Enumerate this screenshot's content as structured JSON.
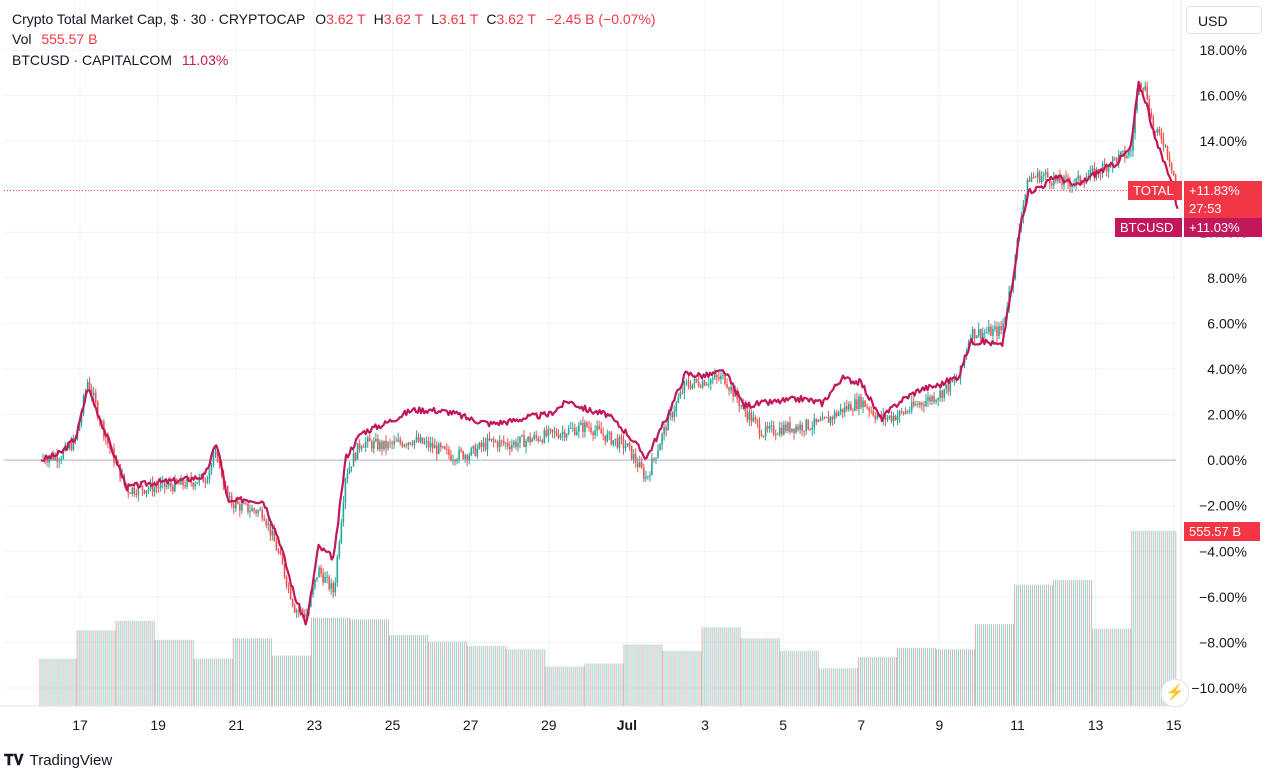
{
  "header": {
    "title": "Crypto Total Market Cap, $ · 30 · CRYPTOCAP",
    "ohlc": [
      {
        "label": "O",
        "value": "3.62 T"
      },
      {
        "label": "H",
        "value": "3.62 T"
      },
      {
        "label": "L",
        "value": "3.61 T"
      },
      {
        "label": "C",
        "value": "3.62 T"
      }
    ],
    "change": "−2.45 B (−0.07%)",
    "vol_label": "Vol",
    "vol_value": "555.57 B",
    "compare_label": "BTCUSD · CAPITALCOM",
    "compare_value": "11.03%"
  },
  "currency_button": "USD",
  "brand": "TradingView",
  "colors": {
    "total_up": "#26a69a",
    "total_down": "#ef5350",
    "btc_line": "#c2185b",
    "total_tag": "#f23645",
    "btc_tag": "#c2185b",
    "grid": "#f0f3fa",
    "zero_line": "#b2b5be",
    "text": "#131722",
    "red_text": "#f23645"
  },
  "tags": {
    "total_name": "TOTAL",
    "total_value": "+11.83%",
    "countdown": "27:53",
    "btc_name": "BTCUSD",
    "btc_value": "+11.03%",
    "volume_value": "555.57 B"
  },
  "chart_data": {
    "type": "line",
    "y_unit": "percent change",
    "ylim": [
      -10,
      18
    ],
    "y_ticks": [
      "18.00%",
      "16.00%",
      "14.00%",
      "12.00%",
      "10.00%",
      "8.00%",
      "6.00%",
      "4.00%",
      "2.00%",
      "0.00%",
      "−2.00%",
      "−4.00%",
      "−6.00%",
      "−8.00%",
      "−10.00%"
    ],
    "y_tick_values": [
      18,
      16,
      14,
      12,
      10,
      8,
      6,
      4,
      2,
      0,
      -2,
      -4,
      -6,
      -8,
      -10
    ],
    "x_ticks": [
      "17",
      "19",
      "21",
      "23",
      "25",
      "27",
      "29",
      "Jul",
      "3",
      "5",
      "7",
      "9",
      "11",
      "13",
      "15"
    ],
    "x_tick_days": [
      17,
      19,
      21,
      23,
      25,
      27,
      29,
      31,
      33,
      35,
      37,
      39,
      41,
      43,
      45
    ],
    "x_day_range": [
      15.95,
      45.2
    ],
    "grid": true,
    "last_value_line": 11.83,
    "series": [
      {
        "name": "TOTAL",
        "style": "candles",
        "x_days": [
          16.0,
          16.5,
          16.9,
          17.2,
          17.7,
          18.2,
          18.8,
          19.5,
          20.2,
          20.5,
          20.8,
          21.2,
          21.7,
          22.1,
          22.5,
          22.8,
          23.1,
          23.5,
          23.8,
          24.2,
          24.8,
          25.5,
          26.0,
          26.5,
          27.0,
          27.5,
          28.0,
          28.5,
          29.0,
          29.5,
          30.0,
          30.5,
          31.0,
          31.5,
          32.0,
          32.5,
          33.0,
          33.5,
          34.0,
          34.5,
          35.0,
          35.5,
          36.0,
          36.5,
          37.0,
          37.5,
          38.0,
          38.5,
          39.0,
          39.5,
          39.8,
          40.2,
          40.6,
          40.9,
          41.1,
          41.3,
          41.7,
          42.0,
          42.5,
          43.0,
          43.5,
          43.9,
          44.1,
          44.3,
          44.5,
          44.7,
          44.9,
          45.1
        ],
        "values": [
          0.1,
          0.2,
          0.9,
          3.5,
          0.8,
          -1.3,
          -1.2,
          -1.1,
          -0.8,
          0.3,
          -1.8,
          -2.1,
          -2.3,
          -4.2,
          -6.5,
          -6.8,
          -4.8,
          -5.8,
          -0.6,
          0.8,
          0.6,
          0.9,
          0.6,
          0.2,
          0.3,
          0.8,
          0.7,
          0.9,
          1.1,
          1.3,
          1.5,
          1.0,
          0.6,
          -0.8,
          1.5,
          3.3,
          3.5,
          3.6,
          2.2,
          1.2,
          1.4,
          1.5,
          1.6,
          2.2,
          2.6,
          1.8,
          2.0,
          2.5,
          2.9,
          3.6,
          5.6,
          5.6,
          5.7,
          8.3,
          10.9,
          12.4,
          12.5,
          12.2,
          12.2,
          12.6,
          13.2,
          13.5,
          16.8,
          16.2,
          14.3,
          14.2,
          13.2,
          11.83
        ]
      },
      {
        "name": "BTCUSD",
        "style": "line",
        "x_days": [
          16.0,
          16.5,
          16.9,
          17.2,
          17.7,
          18.2,
          18.8,
          19.5,
          20.2,
          20.5,
          20.8,
          21.2,
          21.7,
          22.1,
          22.5,
          22.8,
          23.1,
          23.5,
          23.8,
          24.2,
          24.8,
          25.5,
          26.0,
          26.5,
          27.0,
          27.5,
          28.0,
          28.5,
          29.0,
          29.5,
          30.0,
          30.5,
          31.0,
          31.5,
          32.0,
          32.5,
          33.0,
          33.5,
          34.0,
          34.5,
          35.0,
          35.5,
          36.0,
          36.5,
          37.0,
          37.5,
          38.0,
          38.5,
          39.0,
          39.5,
          39.8,
          40.2,
          40.6,
          40.9,
          41.1,
          41.3,
          41.7,
          42.0,
          42.5,
          43.0,
          43.5,
          43.9,
          44.1,
          44.3,
          44.5,
          44.7,
          44.9,
          45.1
        ],
        "values": [
          0.0,
          0.3,
          1.0,
          3.2,
          1.0,
          -1.2,
          -1.0,
          -0.9,
          -0.7,
          0.8,
          -1.9,
          -1.7,
          -1.8,
          -3.5,
          -6.0,
          -7.2,
          -3.8,
          -4.3,
          0.1,
          1.2,
          1.6,
          2.2,
          2.2,
          2.1,
          1.8,
          1.6,
          1.7,
          1.9,
          2.0,
          2.6,
          2.2,
          2.0,
          1.2,
          0.1,
          1.8,
          3.8,
          3.7,
          3.9,
          2.4,
          2.5,
          2.6,
          2.7,
          2.5,
          3.6,
          3.4,
          1.8,
          2.6,
          3.1,
          3.3,
          3.7,
          5.2,
          5.2,
          5.0,
          8.0,
          10.6,
          11.8,
          12.1,
          12.5,
          12.0,
          12.6,
          13.0,
          13.7,
          16.5,
          15.7,
          14.2,
          13.3,
          12.5,
          11.03
        ]
      }
    ],
    "volume": {
      "unit": "B",
      "value_label": "555.57 B",
      "block_start_days": [
        15.95,
        16.9,
        17.9,
        18.9,
        19.9,
        20.9,
        21.9,
        22.9,
        23.9,
        24.9,
        25.9,
        26.9,
        27.9,
        28.9,
        29.9,
        30.9,
        31.9,
        32.9,
        33.9,
        34.9,
        35.9,
        36.9,
        37.9,
        38.9,
        39.9,
        40.9,
        41.9,
        42.9,
        43.9
      ],
      "values": [
        150,
        240,
        270,
        210,
        150,
        215,
        160,
        280,
        275,
        225,
        205,
        190,
        180,
        125,
        135,
        195,
        175,
        250,
        215,
        175,
        120,
        155,
        185,
        180,
        260,
        385,
        400,
        245,
        555.57
      ]
    }
  }
}
